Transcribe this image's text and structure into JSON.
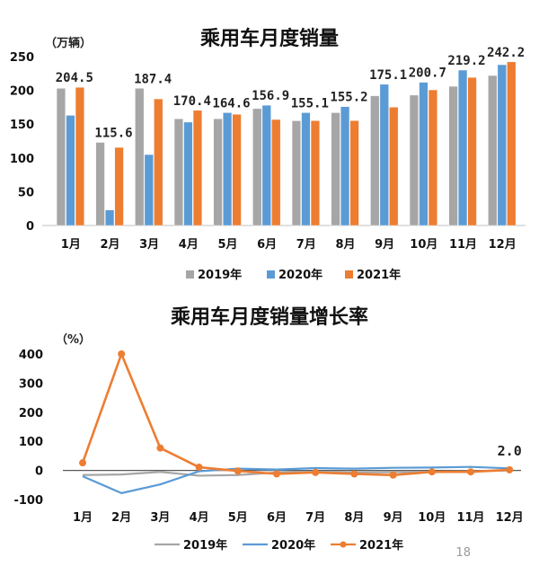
{
  "page_number": "18",
  "chart_data": [
    {
      "type": "bar",
      "title": "乘用车月度销量",
      "ylabel": "（万辆）",
      "ylim": [
        0,
        250
      ],
      "yticks": [
        0,
        50,
        100,
        150,
        200,
        250
      ],
      "categories": [
        "1月",
        "2月",
        "3月",
        "4月",
        "5月",
        "6月",
        "7月",
        "8月",
        "9月",
        "10月",
        "11月",
        "12月"
      ],
      "series": [
        {
          "name": "2019年",
          "color": "#a6a6a6",
          "values": [
            203,
            123,
            203,
            158,
            158,
            173,
            155,
            167,
            192,
            193,
            206,
            222
          ]
        },
        {
          "name": "2020年",
          "color": "#5b9bd5",
          "values": [
            163,
            23,
            105,
            153,
            167,
            178,
            167,
            176,
            209,
            212,
            230,
            238
          ]
        },
        {
          "name": "2021年",
          "color": "#ed7d31",
          "values": [
            204.5,
            115.6,
            187.4,
            170.4,
            164.6,
            156.9,
            155.1,
            155.2,
            175.1,
            200.7,
            219.2,
            242.2
          ]
        }
      ],
      "data_labels": [
        "204.5",
        "115.6",
        "187.4",
        "170.4",
        "164.6",
        "156.9",
        "155.1",
        "155.2",
        "175.1",
        "200.7",
        "219.2",
        "242.2"
      ],
      "legend_position": "bottom"
    },
    {
      "type": "line",
      "title": "乘用车月度销量增长率",
      "ylabel": "（%）",
      "ylim": [
        -100,
        400
      ],
      "yticks": [
        -100,
        0,
        100,
        200,
        300,
        400
      ],
      "categories": [
        "1月",
        "2月",
        "3月",
        "4月",
        "5月",
        "6月",
        "7月",
        "8月",
        "9月",
        "10月",
        "11月",
        "12月"
      ],
      "series": [
        {
          "name": "2019年",
          "color": "#a6a6a6",
          "values": [
            -16,
            -14,
            -5,
            -18,
            -16,
            -7,
            -5,
            -7,
            -6,
            -5,
            -3,
            0
          ]
        },
        {
          "name": "2020年",
          "color": "#5b9bd5",
          "values": [
            -20,
            -78,
            -48,
            -3,
            6,
            3,
            8,
            6,
            9,
            10,
            12,
            7
          ]
        },
        {
          "name": "2021年",
          "color": "#ed7d31",
          "values": [
            26,
            400,
            77,
            11,
            -2,
            -12,
            -7,
            -12,
            -16,
            -5,
            -5,
            2
          ]
        }
      ],
      "end_label": "2.0",
      "legend_position": "bottom"
    }
  ]
}
